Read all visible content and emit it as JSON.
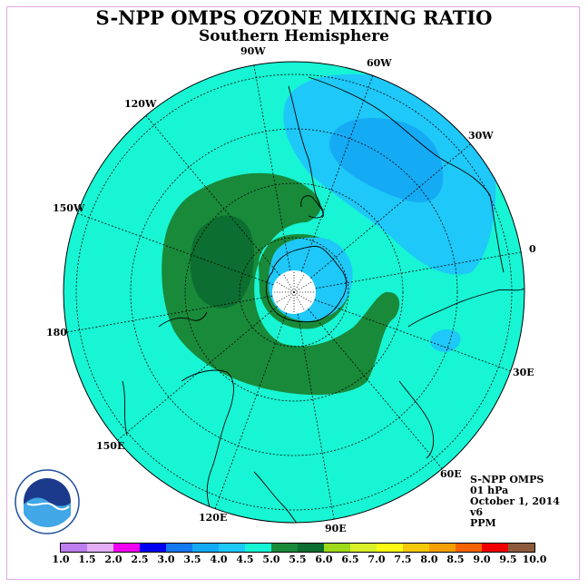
{
  "map": {
    "title": "S-NPP OMPS OZONE MIXING RATIO",
    "subtitle": "Southern Hemisphere",
    "longitude_labels": [
      "90W",
      "60W",
      "30W",
      "0",
      "30E",
      "60E",
      "90E",
      "120E",
      "150E",
      "180",
      "150W",
      "120W"
    ],
    "colors": {
      "background_field": "#17f5d4",
      "level_5_5": "#198a3a",
      "level_6_0": "#0c6e30",
      "level_4_0": "#1ec8f8",
      "level_3_5": "#14aaf4",
      "pole_fill": "#ffffff"
    }
  },
  "info": {
    "instrument": "S-NPP OMPS",
    "level": "01 hPa",
    "date": "October 1, 2014",
    "version": "v6",
    "units": "PPM"
  },
  "logo": {
    "text": "NOAA"
  },
  "colorbar": {
    "colors": [
      "#bd7ef0",
      "#e3aef5",
      "#f000f0",
      "#0000f0",
      "#1478f0",
      "#14aaf4",
      "#1ec8f8",
      "#17f5d4",
      "#198a3a",
      "#0c6e30",
      "#9ed91a",
      "#d8f028",
      "#fafa14",
      "#f5c80a",
      "#f5a000",
      "#f56400",
      "#f00000",
      "#8c5a3c"
    ],
    "labels": [
      "1.0",
      "1.5",
      "2.0",
      "2.5",
      "3.0",
      "3.5",
      "4.0",
      "4.5",
      "5.0",
      "5.5",
      "6.0",
      "6.5",
      "7.0",
      "7.5",
      "8.0",
      "8.5",
      "9.0",
      "9.5",
      "10.0"
    ]
  }
}
